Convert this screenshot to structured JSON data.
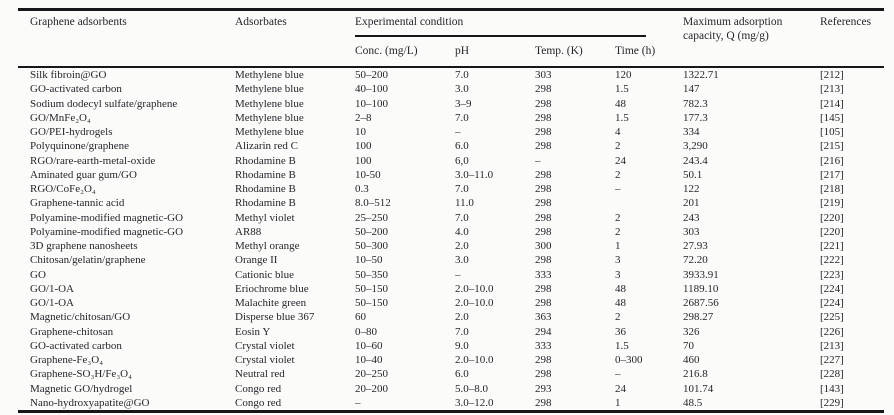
{
  "table": {
    "headers": {
      "adsorbents": "Graphene adsorbents",
      "adsorbates": "Adsorbates",
      "experimental_group": "Experimental condition",
      "sub_conc": "Conc. (mg/L)",
      "sub_ph": "pH",
      "sub_temp": "Temp. (K)",
      "sub_time": "Time (h)",
      "capacity": "Maximum adsorption capacity, Q (mg/g)",
      "references": "References"
    },
    "row_keys": [
      "adsorbent",
      "adsorbate",
      "conc",
      "ph",
      "temp",
      "time",
      "q",
      "ref"
    ],
    "rows": [
      {
        "adsorbent": "Silk fibroin@GO",
        "adsorbate": "Methylene blue",
        "conc": "50–200",
        "ph": "7.0",
        "temp": "303",
        "time": "120",
        "q": "1322.71",
        "ref": "[212]"
      },
      {
        "adsorbent": "GO-activated carbon",
        "adsorbate": "Methylene blue",
        "conc": "40–100",
        "ph": "3.0",
        "temp": "298",
        "time": "1.5",
        "q": "147",
        "ref": "[213]"
      },
      {
        "adsorbent": "Sodium dodecyl sulfate/graphene",
        "adsorbate": "Methylene blue",
        "conc": "10–100",
        "ph": "3–9",
        "temp": "298",
        "time": "48",
        "q": "782.3",
        "ref": "[214]"
      },
      {
        "adsorbent": "GO/MnFe₂O₄",
        "adsorbate": "Methylene blue",
        "conc": "2–8",
        "ph": "7.0",
        "temp": "298",
        "time": "1.5",
        "q": "177.3",
        "ref": "[145]"
      },
      {
        "adsorbent": "GO/PEI-hydrogels",
        "adsorbate": "Methylene blue",
        "conc": "10",
        "ph": "–",
        "temp": "298",
        "time": "4",
        "q": "334",
        "ref": "[105]"
      },
      {
        "adsorbent": "Polyquinone/graphene",
        "adsorbate": "Alizarin red C",
        "conc": "100",
        "ph": "6.0",
        "temp": "298",
        "time": "2",
        "q": "3,290",
        "ref": "[215]"
      },
      {
        "adsorbent": "RGO/rare-earth-metal-oxide",
        "adsorbate": "Rhodamine B",
        "conc": "100",
        "ph": "6,0",
        "temp": "–",
        "time": "24",
        "q": "243.4",
        "ref": "[216]"
      },
      {
        "adsorbent": "Aminated guar gum/GO",
        "adsorbate": "Rhodamine B",
        "conc": "10-50",
        "ph": "3.0–11.0",
        "temp": "298",
        "time": "2",
        "q": "50.1",
        "ref": "[217]"
      },
      {
        "adsorbent": "RGO/CoFe₂O₄",
        "adsorbate": "Rhodamine B",
        "conc": "0.3",
        "ph": "7.0",
        "temp": "298",
        "time": "–",
        "q": "122",
        "ref": "[218]"
      },
      {
        "adsorbent": "Graphene-tannic acid",
        "adsorbate": "Rhodamine B",
        "conc": "8.0–512",
        "ph": "11.0",
        "temp": "298",
        "time": "",
        "q": "201",
        "ref": "[219]"
      },
      {
        "adsorbent": "Polyamine-modified magnetic-GO",
        "adsorbate": "Methyl violet",
        "conc": "25–250",
        "ph": "7.0",
        "temp": "298",
        "time": "2",
        "q": "243",
        "ref": "[220]"
      },
      {
        "adsorbent": "Polyamine-modified magnetic-GO",
        "adsorbate": "AR88",
        "conc": "50–200",
        "ph": "4.0",
        "temp": "298",
        "time": "2",
        "q": "303",
        "ref": "[220]"
      },
      {
        "adsorbent": "3D graphene nanosheets",
        "adsorbate": "Methyl orange",
        "conc": "50–300",
        "ph": "2.0",
        "temp": "300",
        "time": "1",
        "q": "27.93",
        "ref": "[221]"
      },
      {
        "adsorbent": "Chitosan/gelatin/graphene",
        "adsorbate": "Orange II",
        "conc": "10–50",
        "ph": "3.0",
        "temp": "298",
        "time": "3",
        "q": "72.20",
        "ref": "[222]"
      },
      {
        "adsorbent": "GO",
        "adsorbate": "Cationic blue",
        "conc": "50–350",
        "ph": "–",
        "temp": "333",
        "time": "3",
        "q": "3933.91",
        "ref": "[223]"
      },
      {
        "adsorbent": "GO/1-OA",
        "adsorbate": "Eriochrome blue",
        "conc": "50–150",
        "ph": "2.0–10.0",
        "temp": "298",
        "time": "48",
        "q": "1189.10",
        "ref": "[224]"
      },
      {
        "adsorbent": "GO/1-OA",
        "adsorbate": "Malachite green",
        "conc": "50–150",
        "ph": "2.0–10.0",
        "temp": "298",
        "time": "48",
        "q": "2687.56",
        "ref": "[224]"
      },
      {
        "adsorbent": "Magnetic/chitosan/GO",
        "adsorbate": "Disperse blue 367",
        "conc": "60",
        "ph": "2.0",
        "temp": "363",
        "time": "2",
        "q": "298.27",
        "ref": "[225]"
      },
      {
        "adsorbent": "Graphene-chitosan",
        "adsorbate": "Eosin Y",
        "conc": "0–80",
        "ph": "7.0",
        "temp": "294",
        "time": "36",
        "q": "326",
        "ref": "[226]"
      },
      {
        "adsorbent": "GO-activated carbon",
        "adsorbate": "Crystal violet",
        "conc": "10–60",
        "ph": "9.0",
        "temp": "333",
        "time": "1.5",
        "q": "70",
        "ref": "[213]"
      },
      {
        "adsorbent": "Graphene-Fe₃O₄",
        "adsorbate": "Crystal violet",
        "conc": "10–40",
        "ph": "2.0–10.0",
        "temp": "298",
        "time": "0–300",
        "q": "460",
        "ref": "[227]"
      },
      {
        "adsorbent": "Graphene-SO₃H/Fe₃O₄",
        "adsorbate": "Neutral red",
        "conc": "20–250",
        "ph": "6.0",
        "temp": "298",
        "time": "–",
        "q": "216.8",
        "ref": "[228]"
      },
      {
        "adsorbent": "Magnetic GO/hydrogel",
        "adsorbate": "Congo red",
        "conc": "20–200",
        "ph": "5.0–8.0",
        "temp": "293",
        "time": "24",
        "q": "101.74",
        "ref": "[143]"
      },
      {
        "adsorbent": "Nano-hydroxyapatite@GO",
        "adsorbate": "Congo red",
        "conc": "–",
        "ph": "3.0–12.0",
        "temp": "298",
        "time": "1",
        "q": "48.5",
        "ref": "[229]"
      }
    ]
  }
}
